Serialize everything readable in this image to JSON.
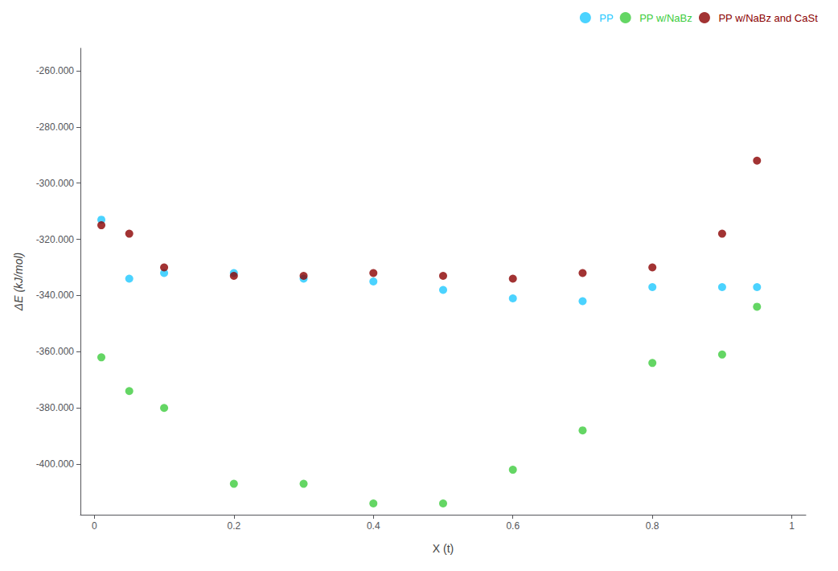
{
  "chart_data": {
    "type": "scatter",
    "xlabel": "X (t)",
    "ylabel": "ΔE (kJ/mol)",
    "x": [
      0.01,
      0.05,
      0.1,
      0.2,
      0.3,
      0.4,
      0.5,
      0.6,
      0.7,
      0.8,
      0.9,
      0.95
    ],
    "series": [
      {
        "name": "PP",
        "color": "#1EC8FF",
        "values": [
          -313,
          -334,
          -332,
          -332,
          -334,
          -335,
          -338,
          -341,
          -342,
          -337,
          -337,
          -337
        ]
      },
      {
        "name": "PP w/NaBz",
        "color": "#3DCC3D",
        "values": [
          -362,
          -374,
          -380,
          -407,
          -407,
          -414,
          -414,
          -402,
          -388,
          -364,
          -361,
          -344
        ]
      },
      {
        "name": "PP w/NaBz and CaSt",
        "color": "#8B0000",
        "values": [
          -315,
          -318,
          -330,
          -333,
          -333,
          -332,
          -333,
          -334,
          -332,
          -330,
          -318,
          -292
        ]
      }
    ],
    "xlim": [
      -0.02,
      1.02
    ],
    "ylim": [
      -418,
      -252
    ],
    "xticks": [
      0,
      0.2,
      0.4,
      0.6,
      0.8,
      1
    ],
    "yticks": [
      {
        "value": -260,
        "label": "-260.000"
      },
      {
        "value": -280,
        "label": "-280.000"
      },
      {
        "value": -300,
        "label": "-300.000"
      },
      {
        "value": -320,
        "label": "-320.000"
      },
      {
        "value": -340,
        "label": "-340.000"
      },
      {
        "value": -360,
        "label": "-360.000"
      },
      {
        "value": -380,
        "label": "-380.000"
      },
      {
        "value": -400,
        "label": "-400.000"
      }
    ],
    "grid": false,
    "legend": "upper right"
  }
}
